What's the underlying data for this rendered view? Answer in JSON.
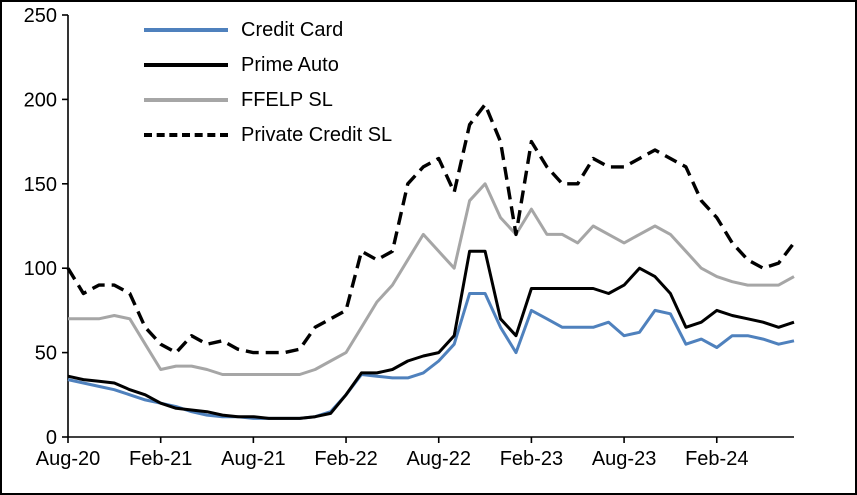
{
  "chart_data": {
    "type": "line",
    "title": "",
    "xlabel": "",
    "ylabel": "",
    "ylim": [
      0,
      250
    ],
    "y_ticks": [
      0,
      50,
      100,
      150,
      200,
      250
    ],
    "x_tick_labels": [
      "Aug-20",
      "Feb-21",
      "Aug-21",
      "Feb-22",
      "Aug-22",
      "Feb-23",
      "Aug-23",
      "Feb-24"
    ],
    "x_tick_positions": [
      0,
      6,
      12,
      18,
      24,
      30,
      36,
      42
    ],
    "x_unit": "month",
    "x_start": "Aug-20",
    "x_end": "Jul-24",
    "grid": false,
    "legend_position": "top-left",
    "axis_color": "#000000",
    "series": [
      {
        "name": "Credit Card",
        "color": "#4f81bd",
        "style": "solid",
        "values": [
          34,
          32,
          30,
          28,
          25,
          22,
          20,
          18,
          15,
          13,
          12,
          12,
          11,
          11,
          11,
          11,
          12,
          15,
          25,
          37,
          36,
          35,
          35,
          38,
          45,
          55,
          85,
          85,
          65,
          50,
          75,
          70,
          65,
          65,
          65,
          68,
          60,
          62,
          75,
          73,
          55,
          58,
          53,
          60,
          60,
          58,
          55,
          57
        ]
      },
      {
        "name": "Prime Auto",
        "color": "#000000",
        "style": "solid",
        "values": [
          36,
          34,
          33,
          32,
          28,
          25,
          20,
          17,
          16,
          15,
          13,
          12,
          12,
          11,
          11,
          11,
          12,
          14,
          25,
          38,
          38,
          40,
          45,
          48,
          50,
          60,
          110,
          110,
          70,
          60,
          88,
          88,
          88,
          88,
          88,
          85,
          90,
          100,
          95,
          85,
          65,
          68,
          75,
          72,
          70,
          68,
          65,
          68
        ]
      },
      {
        "name": "FFELP SL",
        "color": "#a6a6a6",
        "style": "solid",
        "values": [
          70,
          70,
          70,
          72,
          70,
          55,
          40,
          42,
          42,
          40,
          37,
          37,
          37,
          37,
          37,
          37,
          40,
          45,
          50,
          65,
          80,
          90,
          105,
          120,
          110,
          100,
          140,
          150,
          130,
          120,
          135,
          120,
          120,
          115,
          125,
          120,
          115,
          120,
          125,
          120,
          110,
          100,
          95,
          92,
          90,
          90,
          90,
          95
        ]
      },
      {
        "name": "Private Credit SL",
        "color": "#000000",
        "style": "dashed",
        "values": [
          100,
          85,
          90,
          90,
          85,
          65,
          55,
          50,
          60,
          55,
          57,
          52,
          50,
          50,
          50,
          52,
          65,
          70,
          75,
          110,
          105,
          110,
          150,
          160,
          165,
          145,
          185,
          197,
          175,
          120,
          175,
          160,
          150,
          150,
          165,
          160,
          160,
          165,
          170,
          165,
          160,
          140,
          130,
          115,
          105,
          100,
          103,
          115
        ]
      }
    ]
  }
}
